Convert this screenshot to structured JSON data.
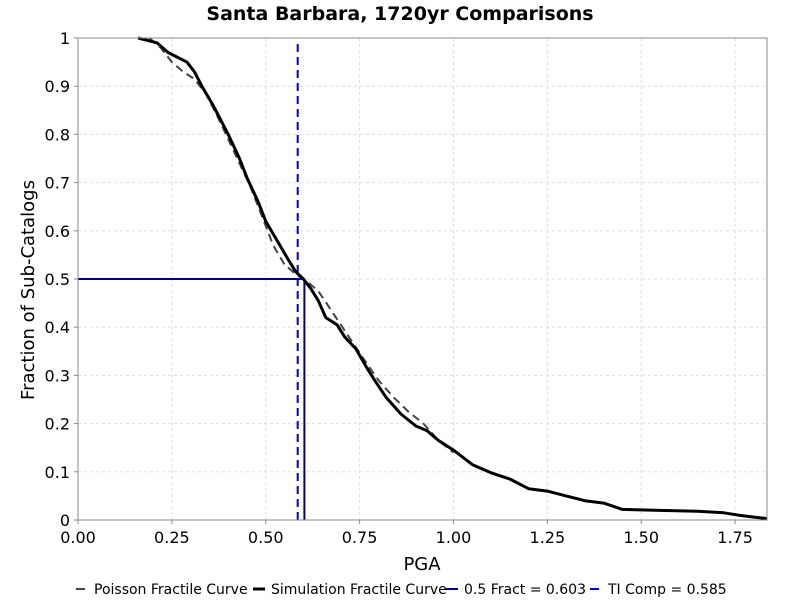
{
  "chart_data": {
    "type": "line",
    "title": "Santa Barbara, 1720yr Comparisons",
    "xlabel": "PGA",
    "ylabel": "Fraction of Sub-Catalogs",
    "xlim": [
      0,
      1.835
    ],
    "ylim": [
      0,
      1
    ],
    "x_ticks": [
      "0.00",
      "0.25",
      "0.50",
      "0.75",
      "1.00",
      "1.25",
      "1.50",
      "1.75"
    ],
    "y_ticks": [
      "0",
      "0.1",
      "0.2",
      "0.3",
      "0.4",
      "0.5",
      "0.6",
      "0.7",
      "0.8",
      "0.9",
      "1"
    ],
    "grid": true,
    "legend_position": "bottom",
    "series": [
      {
        "name": "Poisson Fractile Curve",
        "style": "dashed",
        "color": "#444444",
        "x": [
          0.19,
          0.22,
          0.25,
          0.28,
          0.31,
          0.34,
          0.37,
          0.4,
          0.43,
          0.46,
          0.49,
          0.52,
          0.55,
          0.58,
          0.61,
          0.64,
          0.67,
          0.7,
          0.73,
          0.76,
          0.8,
          0.84,
          0.88,
          0.92,
          0.96,
          1.0
        ],
        "y": [
          1.0,
          0.98,
          0.95,
          0.93,
          0.915,
          0.885,
          0.84,
          0.79,
          0.74,
          0.69,
          0.63,
          0.57,
          0.53,
          0.51,
          0.495,
          0.475,
          0.44,
          0.405,
          0.37,
          0.335,
          0.29,
          0.255,
          0.225,
          0.2,
          0.165,
          0.14
        ]
      },
      {
        "name": "Simulation Fractile Curve",
        "style": "solid",
        "color": "#000000",
        "x": [
          0.16,
          0.21,
          0.24,
          0.29,
          0.31,
          0.33,
          0.36,
          0.4,
          0.43,
          0.45,
          0.48,
          0.5,
          0.53,
          0.56,
          0.58,
          0.6,
          0.62,
          0.64,
          0.66,
          0.69,
          0.71,
          0.74,
          0.77,
          0.79,
          0.82,
          0.86,
          0.9,
          0.93,
          0.96,
          1.0,
          1.05,
          1.1,
          1.15,
          1.2,
          1.25,
          1.3,
          1.35,
          1.4,
          1.45,
          1.55,
          1.65,
          1.72,
          1.76,
          1.8,
          1.835
        ],
        "y": [
          1.0,
          0.99,
          0.97,
          0.95,
          0.93,
          0.9,
          0.86,
          0.8,
          0.75,
          0.71,
          0.66,
          0.62,
          0.58,
          0.54,
          0.515,
          0.5,
          0.48,
          0.455,
          0.42,
          0.405,
          0.38,
          0.355,
          0.315,
          0.29,
          0.255,
          0.22,
          0.195,
          0.185,
          0.165,
          0.145,
          0.115,
          0.098,
          0.085,
          0.065,
          0.06,
          0.05,
          0.04,
          0.035,
          0.022,
          0.02,
          0.018,
          0.015,
          0.01,
          0.006,
          0.003
        ]
      },
      {
        "name": "0.5 Fract = 0.603",
        "style": "solid",
        "color": "#000080",
        "x": [
          0.0,
          0.603,
          0.603
        ],
        "y": [
          0.5,
          0.5,
          0.0
        ]
      },
      {
        "name": "TI Comp = 0.585",
        "style": "dashed",
        "color": "#0000cc",
        "x": [
          0.585,
          0.585
        ],
        "y": [
          0.0,
          0.99
        ]
      }
    ]
  }
}
